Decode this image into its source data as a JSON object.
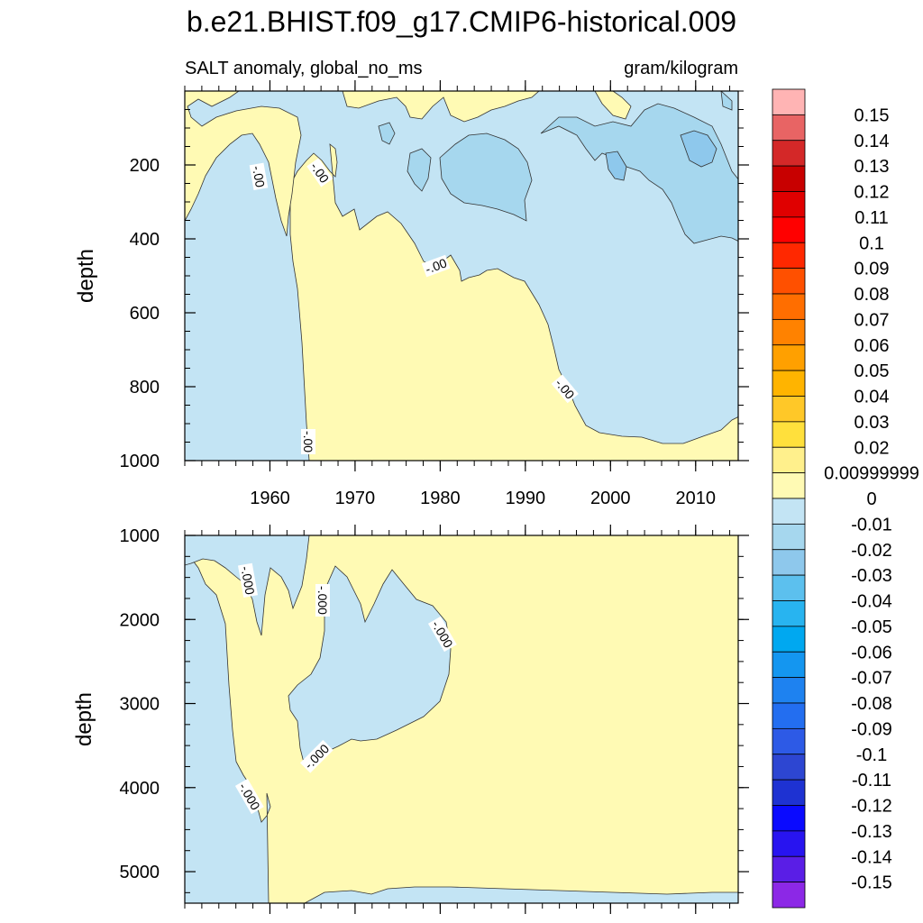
{
  "chart_data": {
    "type": "contour",
    "title": "b.e21.BHIST.f09_g17.CMIP6-historical.009",
    "subtitle_left": "SALT anomaly, global_no_ms",
    "subtitle_right": "gram/kilogram",
    "colorbar": {
      "levels": [
        "0.15",
        "0.14",
        "0.13",
        "0.12",
        "0.11",
        "0.1",
        "0.09",
        "0.08",
        "0.07",
        "0.06",
        "0.05",
        "0.04",
        "0.03",
        "0.02",
        "0.00999999",
        "0",
        "-0.01",
        "-0.02",
        "-0.03",
        "-0.04",
        "-0.05",
        "-0.06",
        "-0.07",
        "-0.08",
        "-0.09",
        "-0.1",
        "-0.11",
        "-0.12",
        "-0.13",
        "-0.14",
        "-0.15"
      ],
      "colors": [
        "#ffb4b4",
        "#e86464",
        "#d42828",
        "#c80000",
        "#e00000",
        "#ff0000",
        "#ff2800",
        "#ff5000",
        "#ff6e00",
        "#ff8200",
        "#ffa000",
        "#ffb400",
        "#ffc828",
        "#ffe03c",
        "#fff08c",
        "#fffab4",
        "#c3e4f4",
        "#a6d7ee",
        "#8ec8ec",
        "#5cc0ee",
        "#28b4f0",
        "#00a8f0",
        "#1496f0",
        "#1e82f0",
        "#236ef0",
        "#2d5ae6",
        "#2d46d2",
        "#1e32d2",
        "#0a0aff",
        "#2814f0",
        "#5a1ee6",
        "#8c28e6"
      ]
    },
    "panels": [
      {
        "name": "upper",
        "ylabel": "depth",
        "yticks": [
          200,
          400,
          600,
          800,
          1000
        ],
        "ylim": [
          0,
          1000
        ],
        "xticks": [
          1960,
          1970,
          1980,
          1990,
          2000,
          2010
        ],
        "xlim": [
          1950,
          2015
        ],
        "contour_labels": [
          "-.00",
          "-.00",
          "-.00",
          "-.00",
          "-.00"
        ]
      },
      {
        "name": "lower",
        "ylabel": "depth",
        "yticks": [
          1000,
          2000,
          3000,
          4000,
          5000
        ],
        "ylim": [
          1000,
          5375
        ],
        "xticks": [
          1960,
          1970,
          1980,
          1990,
          2000,
          2010
        ],
        "xlim": [
          1950,
          2015
        ],
        "contour_labels": [
          "-.000",
          "-.000",
          "-.000",
          "-.000",
          "-.000"
        ]
      }
    ]
  }
}
